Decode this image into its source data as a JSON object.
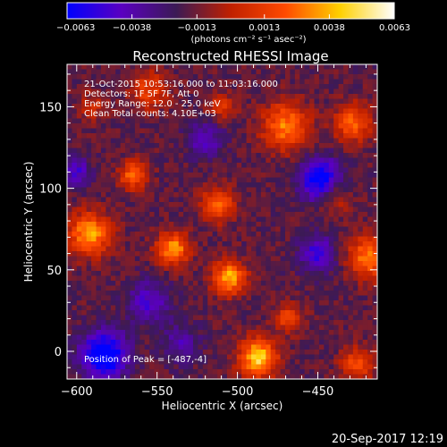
{
  "chart_data": {
    "type": "heatmap",
    "title": "Reconstructed RHESSI Image",
    "xlabel": "Heliocentric X (arcsec)",
    "ylabel": "Heliocentric Y (arcsec)",
    "xlim": [
      -606,
      -413
    ],
    "ylim": [
      -17,
      176
    ],
    "x_ticks": [
      -600,
      -550,
      -500,
      -450
    ],
    "x_tick_labels": [
      "−600",
      "−550",
      "−500",
      "−450"
    ],
    "y_ticks": [
      0,
      50,
      100,
      150
    ],
    "y_tick_labels": [
      "0",
      "50",
      "100",
      "150"
    ],
    "colorbar": {
      "min": -0.0063,
      "max": 0.0063,
      "ticks": [
        -0.0063,
        -0.0038,
        -0.0013,
        0.0013,
        0.0038,
        0.0063
      ],
      "tick_labels": [
        "−0.0063",
        "−0.0038",
        "−0.0013",
        "0.0013",
        "0.0038",
        "0.0063"
      ],
      "units_label": "(photons cm⁻² s⁻¹ asec⁻²)",
      "colors": [
        "#0000ff",
        "#5a00c0",
        "#3c1a55",
        "#c02000",
        "#ff4a00",
        "#ffd000",
        "#ffffff"
      ]
    },
    "info_lines": [
      "21-Oct-2015 10:53:16.000 to 11:03:16.000",
      "Detectors: 1F 5F 7F, Att 0",
      "Energy Range: 12.0 - 25.0 keV",
      "Clean     Total counts: 4.10E+03"
    ],
    "peak_label": "Position of Peak = [-487,-4]",
    "sources": [
      {
        "x": -487,
        "y": -4,
        "sigma": 8,
        "amp": 0.0063
      },
      {
        "x": -505,
        "y": 45,
        "sigma": 7,
        "amp": 0.0055
      },
      {
        "x": -592,
        "y": 72,
        "sigma": 9,
        "amp": 0.0052
      },
      {
        "x": -540,
        "y": 63,
        "sigma": 7,
        "amp": 0.005
      },
      {
        "x": -512,
        "y": 90,
        "sigma": 7,
        "amp": 0.0042
      },
      {
        "x": -565,
        "y": 108,
        "sigma": 6,
        "amp": 0.004
      },
      {
        "x": -470,
        "y": 138,
        "sigma": 10,
        "amp": 0.0045
      },
      {
        "x": -428,
        "y": 140,
        "sigma": 8,
        "amp": 0.004
      },
      {
        "x": -418,
        "y": 58,
        "sigma": 9,
        "amp": 0.0045
      },
      {
        "x": -468,
        "y": 20,
        "sigma": 6,
        "amp": 0.0032
      },
      {
        "x": -425,
        "y": -8,
        "sigma": 7,
        "amp": 0.0035
      },
      {
        "x": -555,
        "y": 160,
        "sigma": 8,
        "amp": 0.003
      },
      {
        "x": -510,
        "y": 150,
        "sigma": 6,
        "amp": 0.0025
      },
      {
        "x": -440,
        "y": 95,
        "sigma": 7,
        "amp": 0.0025
      },
      {
        "x": -590,
        "y": 150,
        "sigma": 6,
        "amp": 0.002
      },
      {
        "x": -583,
        "y": -2,
        "sigma": 10,
        "amp": -0.006
      },
      {
        "x": -448,
        "y": 105,
        "sigma": 9,
        "amp": -0.0055
      },
      {
        "x": -450,
        "y": 60,
        "sigma": 8,
        "amp": -0.0035
      },
      {
        "x": -555,
        "y": 30,
        "sigma": 9,
        "amp": -0.003
      },
      {
        "x": -520,
        "y": 130,
        "sigma": 8,
        "amp": -0.0025
      },
      {
        "x": -600,
        "y": 110,
        "sigma": 6,
        "amp": -0.003
      },
      {
        "x": -535,
        "y": 5,
        "sigma": 8,
        "amp": -0.0022
      }
    ],
    "background": -0.0016
  },
  "footer": {
    "timestamp": "20-Sep-2017 12:19"
  }
}
